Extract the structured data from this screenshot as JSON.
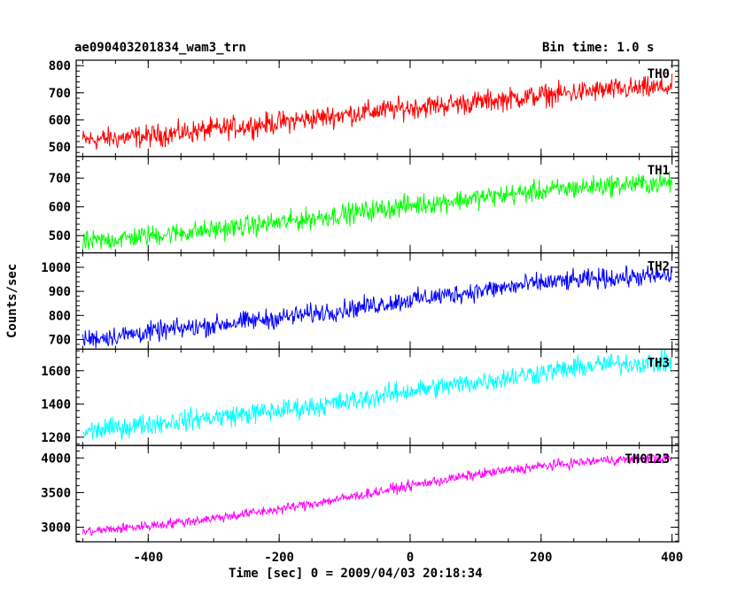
{
  "header": {
    "title": "ae090403201834_wam3_trn",
    "bin_time": "Bin time: 1.0 s"
  },
  "chart_data": {
    "type": "line",
    "title": "ae090403201834_wam3_trn",
    "subtitle": "Bin time: 1.0 s",
    "xlabel": "Time [sec] 0 = 2009/04/03 20:18:34",
    "ylabel": "Counts/sec",
    "xlim": [
      -510,
      410
    ],
    "x_ticks": [
      -400,
      -200,
      0,
      200,
      400
    ],
    "grid": false,
    "panels": [
      {
        "name": "TH0",
        "color": "#ff0000",
        "ylim": [
          465,
          820
        ],
        "y_ticks": [
          500,
          600,
          700,
          800
        ],
        "trend_x": [
          -500,
          -400,
          -300,
          -200,
          -100,
          0,
          100,
          200,
          300,
          400
        ],
        "trend_y": [
          525,
          540,
          565,
          590,
          620,
          645,
          665,
          690,
          710,
          720
        ],
        "noise_amplitude": 45
      },
      {
        "name": "TH1",
        "color": "#00ff00",
        "ylim": [
          440,
          775
        ],
        "y_ticks": [
          500,
          600,
          700
        ],
        "trend_x": [
          -500,
          -400,
          -300,
          -200,
          -100,
          0,
          100,
          200,
          300,
          400
        ],
        "trend_y": [
          475,
          500,
          520,
          545,
          575,
          605,
          630,
          655,
          675,
          685
        ],
        "noise_amplitude": 40
      },
      {
        "name": "TH2",
        "color": "#0000ff",
        "ylim": [
          660,
          1060
        ],
        "y_ticks": [
          700,
          800,
          900,
          1000
        ],
        "trend_x": [
          -500,
          -400,
          -300,
          -200,
          -100,
          0,
          100,
          200,
          300,
          400
        ],
        "trend_y": [
          700,
          730,
          760,
          790,
          825,
          865,
          900,
          935,
          955,
          965
        ],
        "noise_amplitude": 45
      },
      {
        "name": "TH3",
        "color": "#00ffff",
        "ylim": [
          1150,
          1730
        ],
        "y_ticks": [
          1200,
          1400,
          1600
        ],
        "trend_x": [
          -500,
          -400,
          -300,
          -200,
          -100,
          0,
          100,
          200,
          300,
          400
        ],
        "trend_y": [
          1230,
          1280,
          1320,
          1360,
          1410,
          1480,
          1530,
          1590,
          1640,
          1650
        ],
        "noise_amplitude": 70
      },
      {
        "name": "TH0123",
        "color": "#ff00ff",
        "ylim": [
          2790,
          4180
        ],
        "y_ticks": [
          3000,
          3500,
          4000
        ],
        "trend_x": [
          -500,
          -400,
          -300,
          -200,
          -100,
          0,
          100,
          200,
          300,
          400
        ],
        "trend_y": [
          2930,
          3020,
          3130,
          3260,
          3420,
          3600,
          3760,
          3880,
          3970,
          4000
        ],
        "noise_amplitude": 80
      }
    ]
  }
}
